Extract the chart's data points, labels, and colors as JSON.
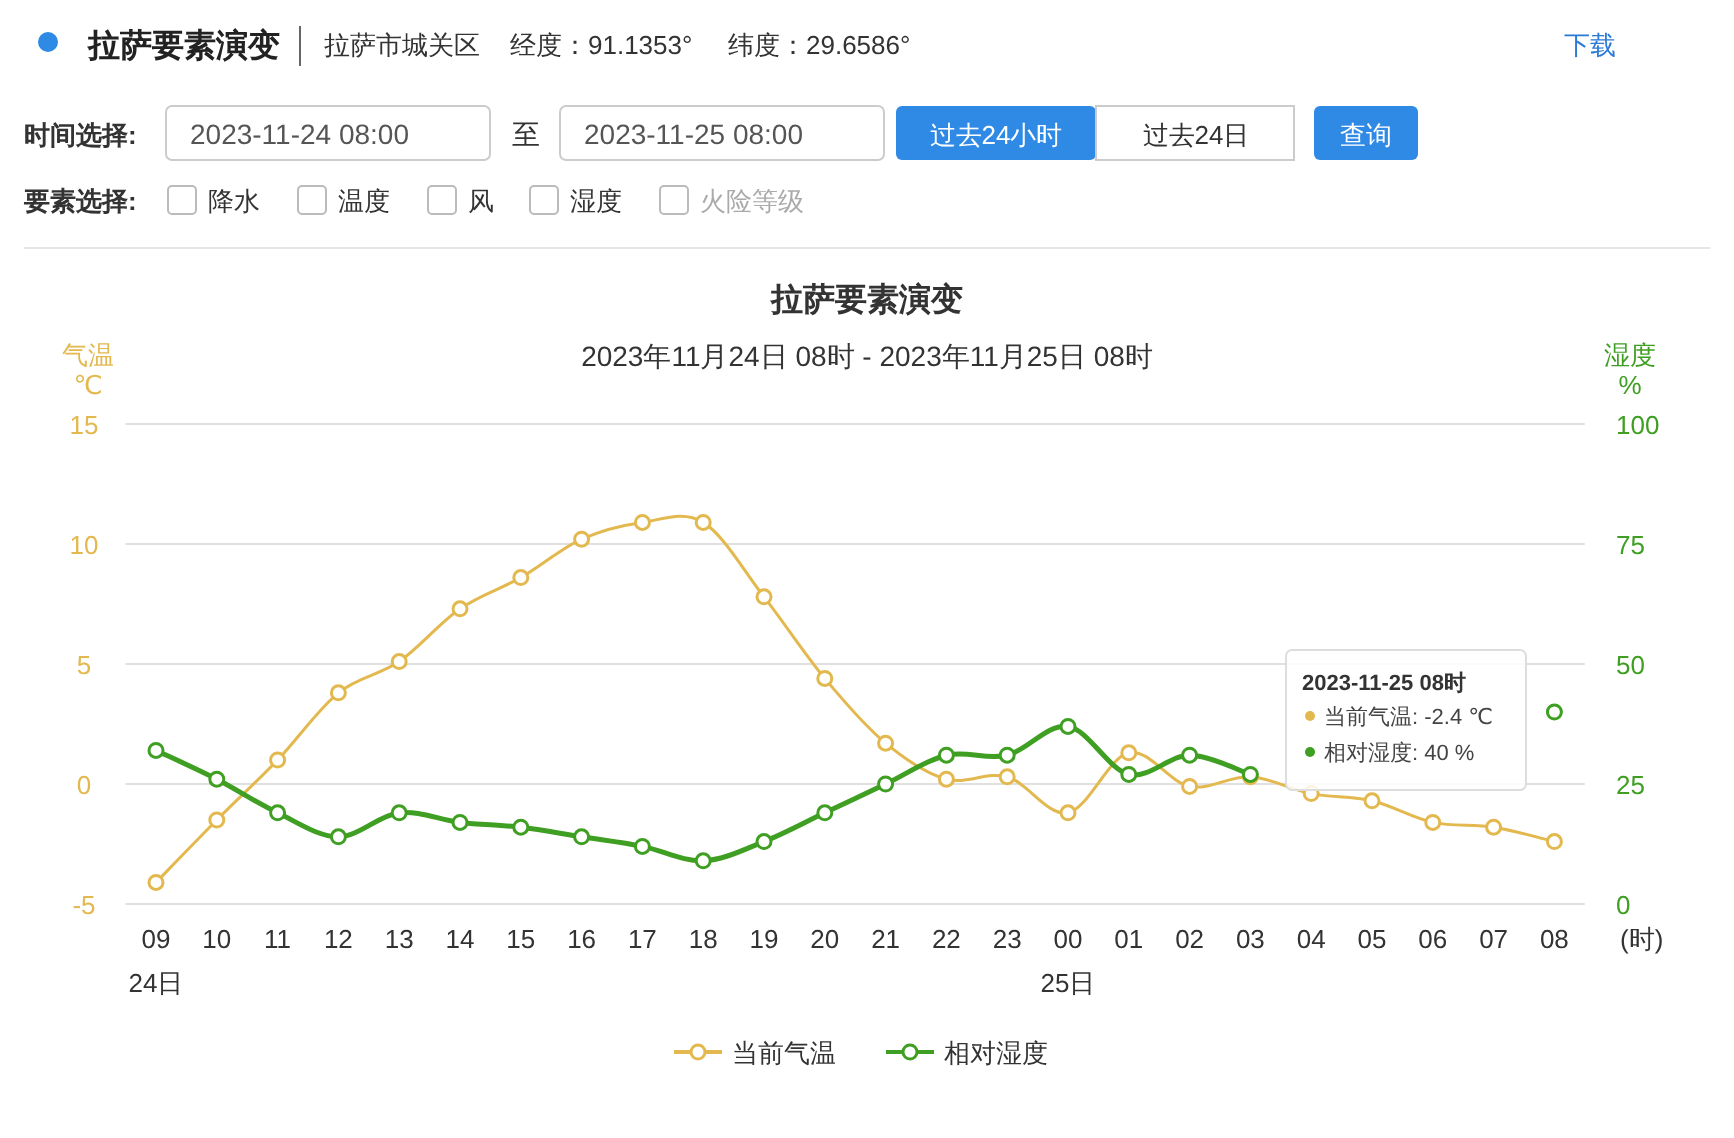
{
  "chart_data": {
    "type": "line",
    "title": "拉萨要素演变",
    "subtitle": "2023年11月24日 08时 - 2023年11月25日 08时",
    "ylabel": "气温\n℃",
    "y2label": "湿度\n%",
    "xlabel": "(时)",
    "categories": [
      "09\n24日",
      "10",
      "11",
      "12",
      "13",
      "14",
      "15",
      "16",
      "17",
      "18",
      "19",
      "20",
      "21",
      "22",
      "23",
      "00\n25日",
      "01",
      "02",
      "03",
      "04",
      "05",
      "06",
      "07",
      "08"
    ],
    "series": [
      {
        "name": "当前气温",
        "color": "#e3b94f",
        "values": [
          -4.1,
          -1.5,
          1.0,
          3.8,
          5.1,
          7.3,
          8.6,
          10.2,
          10.9,
          10.9,
          7.8,
          4.4,
          1.7,
          0.2,
          0.3,
          -1.2,
          1.3,
          -0.1,
          0.3,
          -0.4,
          -0.7,
          -1.6,
          -1.8,
          -2.4
        ]
      },
      {
        "name": "相对湿度",
        "color": "#3f9f22",
        "axis": "y2",
        "values": [
          32,
          26,
          19,
          14,
          19,
          17,
          16,
          14,
          12,
          9,
          13,
          19,
          25,
          31,
          31,
          37,
          27,
          31,
          27,
          null,
          null,
          null,
          null,
          40
        ]
      }
    ],
    "ylim": [
      -5,
      15
    ],
    "yticks": [
      -5,
      0,
      5,
      10,
      15
    ],
    "y2lim": [
      0,
      100
    ],
    "y2ticks": [
      0,
      25,
      50,
      75,
      100
    ],
    "grid": "y",
    "legend": "bottom",
    "marker": "circle",
    "line_style": "solid",
    "annotations": [
      "拉萨要素演变",
      "拉萨市城关区",
      "经度：91.1353°",
      "纬度：29.6586°",
      "下载",
      "时间选择:",
      "2023-11-24 08:00",
      "至",
      "2023-11-25 08:00",
      "过去24小时",
      "过去24日",
      "查询",
      "要素选择:",
      "降水",
      "温度",
      "风",
      "湿度",
      "火险等级",
      "2023-11-25 08时",
      "当前气温: -2.4 ℃",
      "相对湿度: 40 %"
    ]
  }
}
